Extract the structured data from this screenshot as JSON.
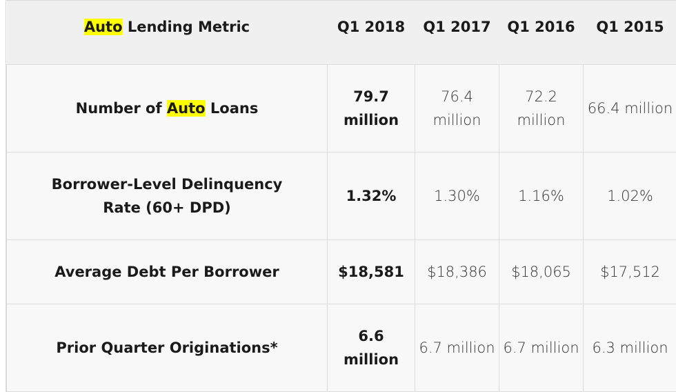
{
  "highlight_color": "#ffff00",
  "header": {
    "metric_hl": "Auto",
    "metric_rest": " Lending Metric",
    "columns": [
      "Q1 2018",
      "Q1 2017",
      "Q1 2016",
      "Q1 2015"
    ]
  },
  "rows": [
    {
      "label_pre": "Number of ",
      "label_hl": "Auto",
      "label_post": " Loans",
      "values": [
        "79.7 million",
        "76.4 million",
        "72.2 million",
        "66.4 million"
      ]
    },
    {
      "label_pre": "Borrower-Level Delinquency Rate (60+ DPD)",
      "values": [
        "1.32%",
        "1.30%",
        "1.16%",
        "1.02%"
      ]
    },
    {
      "label_pre": "Average Debt Per Borrower",
      "values": [
        "$18,581",
        "$18,386",
        "$18,065",
        "$17,512"
      ]
    },
    {
      "label_pre": "Prior Quarter Originations*",
      "values": [
        "6.6 million",
        "6.7 million",
        "6.7 million",
        "6.3 million"
      ]
    }
  ]
}
